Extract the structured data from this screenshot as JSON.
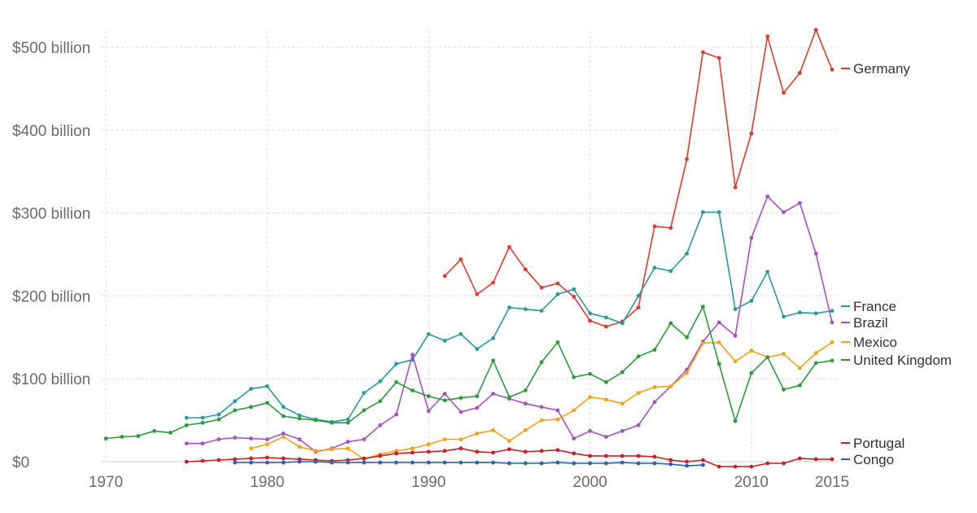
{
  "chart_data": {
    "type": "line",
    "title": "",
    "xlabel": "",
    "ylabel": "",
    "xlim": [
      1970,
      2015
    ],
    "ylim": [
      0,
      520
    ],
    "x_ticks": [
      1970,
      1980,
      1990,
      2000,
      2010,
      2015
    ],
    "x_tick_labels": [
      "1970",
      "1980",
      "1990",
      "2000",
      "2010",
      "2015"
    ],
    "y_ticks": [
      0,
      100,
      200,
      300,
      400,
      500
    ],
    "y_tick_labels": [
      "$0",
      "$100 billion",
      "$200 billion",
      "$300 billion",
      "$400 billion",
      "$500 billion"
    ],
    "grid": true,
    "legend_position": "right, at series ends",
    "series": [
      {
        "name": "Germany",
        "color": "#e03b2f",
        "x": [
          1991,
          1992,
          1993,
          1994,
          1995,
          1996,
          1997,
          1998,
          1999,
          2000,
          2001,
          2002,
          2003,
          2004,
          2005,
          2006,
          2007,
          2008,
          2009,
          2010,
          2011,
          2012,
          2013,
          2014,
          2015
        ],
        "values": [
          224,
          244,
          202,
          216,
          259,
          232,
          210,
          215,
          199,
          170,
          163,
          169,
          186,
          284,
          282,
          365,
          494,
          487,
          331,
          396,
          513,
          445,
          469,
          521,
          473
        ]
      },
      {
        "name": "France",
        "color": "#2a9a9a",
        "x": [
          1975,
          1976,
          1977,
          1978,
          1979,
          1980,
          1981,
          1982,
          1983,
          1984,
          1985,
          1986,
          1987,
          1988,
          1989,
          1990,
          1991,
          1992,
          1993,
          1994,
          1995,
          1996,
          1997,
          1998,
          1999,
          2000,
          2001,
          2002,
          2003,
          2004,
          2005,
          2006,
          2007,
          2008,
          2009,
          2010,
          2011,
          2012,
          2013,
          2014,
          2015
        ],
        "values": [
          53,
          53,
          57,
          73,
          88,
          91,
          66,
          56,
          51,
          48,
          51,
          83,
          97,
          118,
          123,
          154,
          146,
          154,
          136,
          149,
          186,
          184,
          182,
          202,
          208,
          179,
          174,
          167,
          200,
          234,
          230,
          251,
          301,
          301,
          184,
          194,
          229,
          175,
          180,
          179,
          182
        ]
      },
      {
        "name": "Brazil",
        "color": "#a552c0",
        "x": [
          1975,
          1976,
          1977,
          1978,
          1979,
          1980,
          1981,
          1982,
          1983,
          1984,
          1985,
          1986,
          1987,
          1988,
          1989,
          1990,
          1991,
          1992,
          1993,
          1994,
          1995,
          1996,
          1997,
          1998,
          1999,
          2000,
          2001,
          2002,
          2003,
          2004,
          2005,
          2006,
          2007,
          2008,
          2009,
          2010,
          2011,
          2012,
          2013,
          2014,
          2015
        ],
        "values": [
          22,
          22,
          27,
          29,
          28,
          27,
          34,
          27,
          12,
          16,
          24,
          27,
          44,
          57,
          129,
          61,
          82,
          60,
          65,
          82,
          76,
          70,
          66,
          62,
          28,
          37,
          30,
          37,
          44,
          72,
          91,
          111,
          145,
          168,
          152,
          270,
          320,
          301,
          312,
          251,
          168
        ]
      },
      {
        "name": "Mexico",
        "color": "#f2a31b",
        "x": [
          1979,
          1980,
          1981,
          1982,
          1983,
          1984,
          1985,
          1986,
          1987,
          1988,
          1989,
          1990,
          1991,
          1992,
          1993,
          1994,
          1995,
          1996,
          1997,
          1998,
          1999,
          2000,
          2001,
          2002,
          2003,
          2004,
          2005,
          2006,
          2007,
          2008,
          2009,
          2010,
          2011,
          2012,
          2013,
          2014,
          2015
        ],
        "values": [
          16,
          21,
          30,
          18,
          13,
          15,
          16,
          3,
          9,
          13,
          16,
          21,
          27,
          27,
          34,
          38,
          25,
          38,
          50,
          51,
          62,
          78,
          75,
          70,
          83,
          90,
          91,
          107,
          143,
          144,
          121,
          134,
          126,
          130,
          113,
          131,
          144
        ]
      },
      {
        "name": "United Kingdom",
        "color": "#2f9a3c",
        "x": [
          1970,
          1971,
          1972,
          1973,
          1974,
          1975,
          1976,
          1977,
          1978,
          1979,
          1980,
          1981,
          1982,
          1983,
          1984,
          1985,
          1986,
          1987,
          1988,
          1989,
          1990,
          1991,
          1992,
          1993,
          1994,
          1995,
          1996,
          1997,
          1998,
          1999,
          2000,
          2001,
          2002,
          2003,
          2004,
          2005,
          2006,
          2007,
          2008,
          2009,
          2010,
          2011,
          2012,
          2013,
          2014,
          2015
        ],
        "values": [
          28,
          30,
          31,
          37,
          35,
          44,
          47,
          51,
          62,
          66,
          71,
          55,
          52,
          50,
          47,
          47,
          62,
          73,
          96,
          86,
          79,
          74,
          77,
          79,
          122,
          78,
          86,
          120,
          144,
          102,
          106,
          96,
          108,
          127,
          135,
          167,
          150,
          187,
          118,
          49,
          107,
          126,
          87,
          92,
          119,
          122
        ]
      },
      {
        "name": "Portugal",
        "color": "#c8202a",
        "x": [
          1975,
          1976,
          1977,
          1978,
          1979,
          1980,
          1981,
          1982,
          1983,
          1984,
          1985,
          1986,
          1987,
          1988,
          1989,
          1990,
          1991,
          1992,
          1993,
          1994,
          1995,
          1996,
          1997,
          1998,
          1999,
          2000,
          2001,
          2002,
          2003,
          2004,
          2005,
          2006,
          2007,
          2008,
          2009,
          2010,
          2011,
          2012,
          2013,
          2014,
          2015
        ],
        "values": [
          0,
          1,
          2,
          3,
          4,
          5,
          4,
          3,
          2,
          1,
          2,
          4,
          7,
          10,
          11,
          12,
          13,
          16,
          12,
          11,
          15,
          12,
          13,
          14,
          10,
          7,
          7,
          7,
          7,
          6,
          2,
          0,
          2,
          -6,
          -6,
          -6,
          -2,
          -2,
          4,
          3,
          3
        ]
      },
      {
        "name": "Congo",
        "color": "#2b5fb0",
        "x": [
          1978,
          1979,
          1980,
          1981,
          1982,
          1983,
          1984,
          1985,
          1986,
          1987,
          1988,
          1989,
          1990,
          1991,
          1992,
          1993,
          1994,
          1995,
          1996,
          1997,
          1998,
          1999,
          2000,
          2001,
          2002,
          2003,
          2004,
          2005,
          2006,
          2007
        ],
        "values": [
          -1,
          -1,
          -1,
          -1,
          0,
          0,
          -1,
          -1,
          -1,
          -1,
          -1,
          -1,
          -1,
          -1,
          -1,
          -1,
          -1,
          -2,
          -2,
          -2,
          -1,
          -2,
          -2,
          -2,
          -1,
          -2,
          -2,
          -3,
          -5,
          -4
        ]
      }
    ]
  }
}
